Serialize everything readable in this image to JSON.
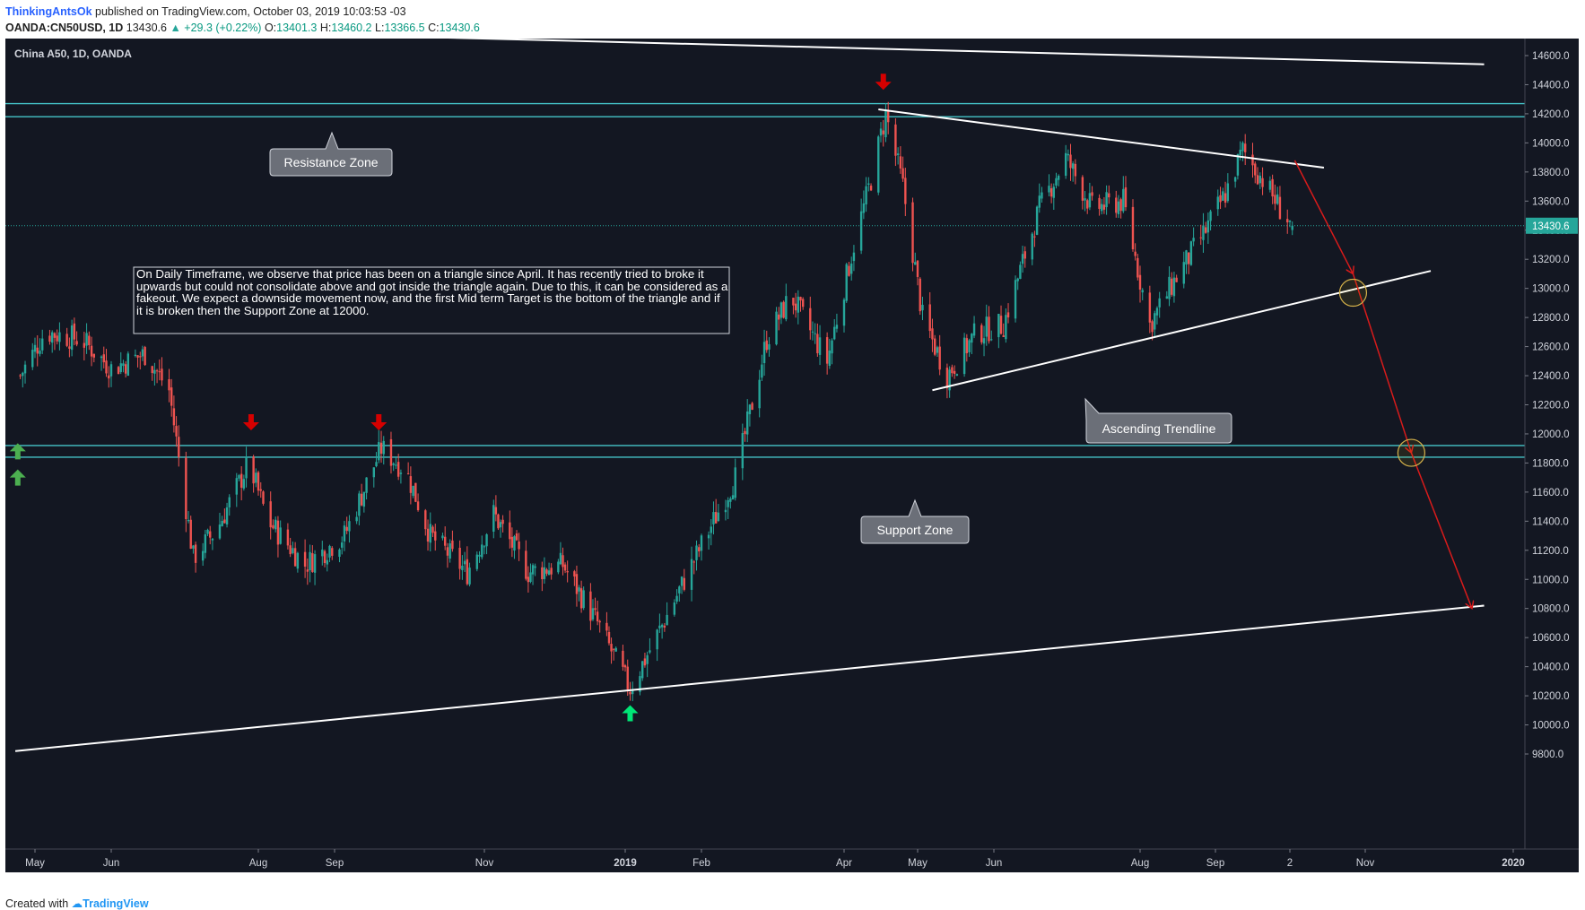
{
  "header": {
    "author": "ThinkingAntsOk",
    "published": "published on TradingView.com, October 03, 2019 10:03:53 -03",
    "symbol": "OANDA:CN50USD, 1D",
    "last": "13430.6",
    "change_arrow": "▲",
    "change": "+29.3 (+0.22%)",
    "o_label": "O:",
    "o_value": "13401.3",
    "h_label": "H:",
    "h_value": "13460.2",
    "l_label": "L:",
    "l_value": "13366.5",
    "c_label": "C:",
    "c_value": "13430.6"
  },
  "footer": {
    "created_with": "Created with",
    "brand": "TradingView"
  },
  "colors": {
    "background": "#131722",
    "up": "#26a69a",
    "down": "#ef5350",
    "zone_line": "#45c4c8",
    "trendline": "#ffffff",
    "projection": "#d81b1b",
    "arrow_down": "#d50000",
    "arrow_up": "#00e676",
    "callout_bg": "#6b6f78"
  },
  "chart_data": {
    "type": "candlestick",
    "title": "China A50, 1D, OANDA",
    "ylim": [
      9750,
      14750
    ],
    "y_ticks": [
      "14600.0",
      "14400.0",
      "14200.0",
      "14000.0",
      "13800.0",
      "13600.0",
      "13400.0",
      "13200.0",
      "13000.0",
      "12800.0",
      "12600.0",
      "12400.0",
      "12200.0",
      "12000.0",
      "11800.0",
      "11600.0",
      "11400.0",
      "11200.0",
      "11000.0",
      "10800.0",
      "10600.0",
      "10400.0",
      "10200.0",
      "10000.0",
      "9800.0"
    ],
    "x_ticks": [
      "May",
      "Jun",
      "Aug",
      "Sep",
      "Nov",
      "2019",
      "Feb",
      "Apr",
      "May",
      "Jun",
      "Aug",
      "Sep",
      "2",
      "Nov",
      "2020"
    ],
    "last_price_label": "13430.6",
    "price_path": [
      [
        "2018-04-25",
        12400
      ],
      [
        "2018-05-05",
        12700
      ],
      [
        "2018-05-20",
        12650
      ],
      [
        "2018-06-01",
        12450
      ],
      [
        "2018-06-15",
        12550
      ],
      [
        "2018-06-25",
        12300
      ],
      [
        "2018-07-05",
        11150
      ],
      [
        "2018-07-15",
        11350
      ],
      [
        "2018-07-28",
        11800
      ],
      [
        "2018-08-05",
        11400
      ],
      [
        "2018-08-20",
        11100
      ],
      [
        "2018-09-05",
        11300
      ],
      [
        "2018-09-20",
        11900
      ],
      [
        "2018-09-30",
        11750
      ],
      [
        "2018-10-10",
        11300
      ],
      [
        "2018-10-25",
        11050
      ],
      [
        "2018-11-05",
        11450
      ],
      [
        "2018-11-20",
        11050
      ],
      [
        "2018-12-05",
        11100
      ],
      [
        "2018-12-20",
        10700
      ],
      [
        "2019-01-03",
        10250
      ],
      [
        "2019-01-15",
        10650
      ],
      [
        "2019-01-31",
        11200
      ],
      [
        "2019-02-15",
        11700
      ],
      [
        "2019-02-28",
        12650
      ],
      [
        "2019-03-10",
        12950
      ],
      [
        "2019-03-25",
        12500
      ],
      [
        "2019-04-05",
        13300
      ],
      [
        "2019-04-12",
        13750
      ],
      [
        "2019-04-18",
        14200
      ],
      [
        "2019-04-25",
        13700
      ],
      [
        "2019-05-03",
        12800
      ],
      [
        "2019-05-13",
        12400
      ],
      [
        "2019-05-25",
        12700
      ],
      [
        "2019-06-05",
        12750
      ],
      [
        "2019-06-20",
        13550
      ],
      [
        "2019-07-01",
        13900
      ],
      [
        "2019-07-12",
        13550
      ],
      [
        "2019-07-25",
        13600
      ],
      [
        "2019-08-05",
        12750
      ],
      [
        "2019-08-15",
        13050
      ],
      [
        "2019-08-28",
        13400
      ],
      [
        "2019-09-05",
        13650
      ],
      [
        "2019-09-12",
        13950
      ],
      [
        "2019-09-20",
        13750
      ],
      [
        "2019-09-27",
        13550
      ],
      [
        "2019-10-02",
        13430
      ]
    ],
    "resistance_zone": [
      14180,
      14270
    ],
    "support_zone": [
      11840,
      11920
    ],
    "annotations": {
      "note": "On Daily Timeframe, we observe that price has been on a triangle since April. It has recently tried to broke it upwards but could not consolidate above and got inside the triangle again. Due to this, it can be considered as a fakeout. We expect a downside movement now, and the first Mid term Target is the bottom of the triangle and if it is broken then the Support Zone at 12000.",
      "resistance_label": "Resistance Zone",
      "support_label": "Support Zone",
      "trendline_label": "Ascending Trendline"
    },
    "trendlines": [
      {
        "name": "upper-long",
        "from": [
          "2018-10-01",
          14730
        ],
        "to": [
          "2019-12-20",
          14540
        ]
      },
      {
        "name": "triangle-top",
        "from": [
          "2019-04-15",
          14230
        ],
        "to": [
          "2019-10-15",
          13830
        ]
      },
      {
        "name": "triangle-bottom",
        "from": [
          "2019-05-07",
          12300
        ],
        "to": [
          "2019-11-28",
          13120
        ]
      },
      {
        "name": "lower-long",
        "from": [
          "2018-04-23",
          9820
        ],
        "to": [
          "2019-12-20",
          10820
        ]
      }
    ],
    "projection_path": [
      [
        "2019-10-03",
        13880
      ],
      [
        "2019-10-27",
        13100
      ],
      [
        "2019-11-20",
        11870
      ],
      [
        "2019-12-15",
        10800
      ]
    ],
    "target_circles": [
      [
        "2019-10-27",
        12970
      ],
      [
        "2019-11-20",
        11870
      ]
    ],
    "signal_arrows": [
      {
        "dir": "down",
        "date": "2018-07-29",
        "price": 12080
      },
      {
        "dir": "down",
        "date": "2018-09-19",
        "price": 12080
      },
      {
        "dir": "down",
        "date": "2019-04-17",
        "price": 14420
      },
      {
        "dir": "up",
        "date": "2019-01-03",
        "price": 10080
      },
      {
        "dir": "up",
        "date": "2018-04-24",
        "price": 11880
      },
      {
        "dir": "up",
        "date": "2018-04-24",
        "price": 11700
      }
    ]
  }
}
